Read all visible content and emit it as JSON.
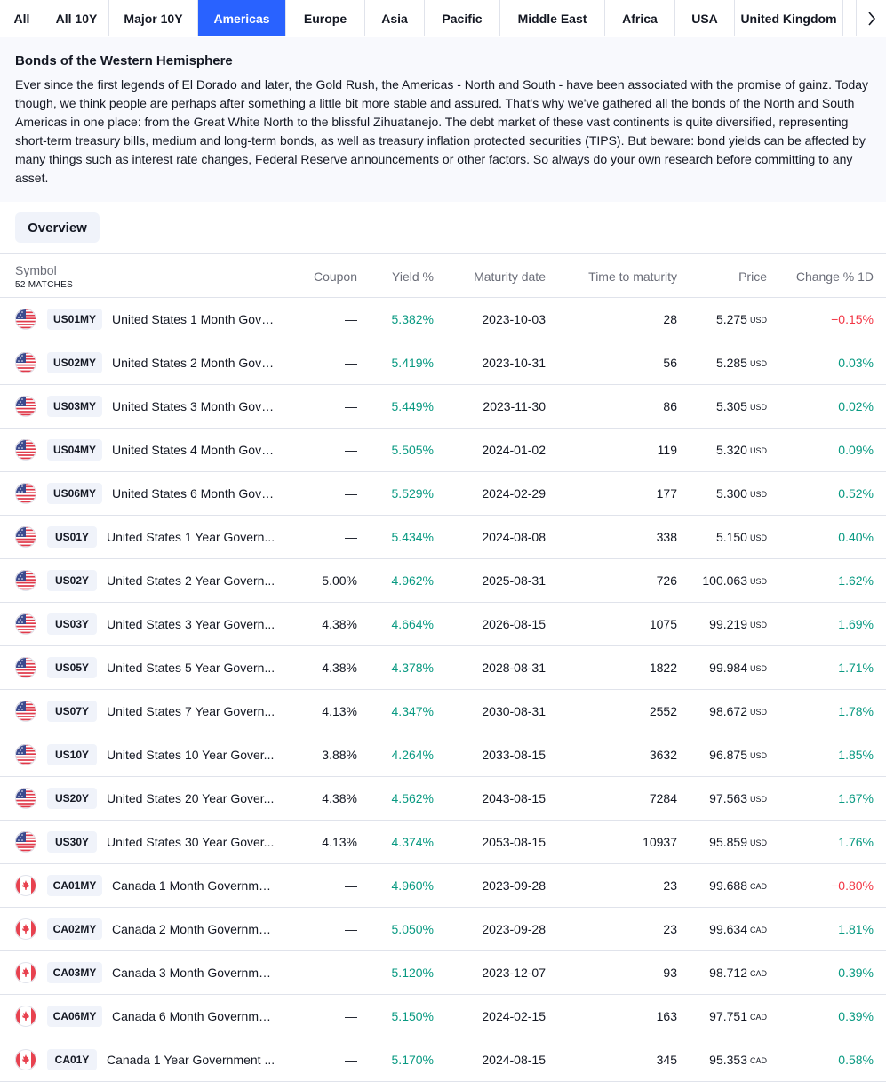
{
  "tabs": [
    {
      "label": "All",
      "active": false
    },
    {
      "label": "All 10Y",
      "active": false
    },
    {
      "label": "Major 10Y",
      "active": false
    },
    {
      "label": "Americas",
      "active": true
    },
    {
      "label": "Europe",
      "active": false
    },
    {
      "label": "Asia",
      "active": false
    },
    {
      "label": "Pacific",
      "active": false
    },
    {
      "label": "Middle East",
      "active": false
    },
    {
      "label": "Africa",
      "active": false
    },
    {
      "label": "USA",
      "active": false
    },
    {
      "label": "United Kingdom",
      "active": false
    }
  ],
  "tab_scroll_icon": "chevron-right-icon",
  "description": {
    "title": "Bonds of the Western Hemisphere",
    "text": "Ever since the first legends of El Dorado and later, the Gold Rush, the Americas - North and South - have been associated with the promise of gainz. Today though, we think people are perhaps after something a little bit more stable and assured. That's why we've gathered all the bonds of the North and South Americas in one place: from the Great White North to the blissful Zihuatanejo. The debt market of these vast continents is quite diversified, representing short-term treasury bills, medium and long-term bonds, as well as treasury inflation protected securities (TIPS). But beware: bond yields can be affected by many things such as interest rate changes, Federal Reserve announcements or other factors. So always do your own research before committing to any asset."
  },
  "overview_label": "Overview",
  "table": {
    "headers": {
      "symbol": "Symbol",
      "matches": "52 MATCHES",
      "coupon": "Coupon",
      "yield": "Yield %",
      "maturity": "Maturity date",
      "ttm": "Time to maturity",
      "price": "Price",
      "change": "Change % 1D"
    },
    "colors": {
      "positive": "#089981",
      "negative": "#f23645",
      "accent": "#2962ff"
    },
    "rows": [
      {
        "flag": "us-flag-icon",
        "ticker": "US01MY",
        "name": "United States 1 Month Gove...",
        "coupon": "—",
        "yield": "5.382%",
        "maturity": "2023-10-03",
        "ttm": "28",
        "price": "5.275",
        "currency": "USD",
        "change": "−0.15%",
        "change_dir": "neg"
      },
      {
        "flag": "us-flag-icon",
        "ticker": "US02MY",
        "name": "United States 2 Month Gove...",
        "coupon": "—",
        "yield": "5.419%",
        "maturity": "2023-10-31",
        "ttm": "56",
        "price": "5.285",
        "currency": "USD",
        "change": "0.03%",
        "change_dir": "pos"
      },
      {
        "flag": "us-flag-icon",
        "ticker": "US03MY",
        "name": "United States 3 Month Gove...",
        "coupon": "—",
        "yield": "5.449%",
        "maturity": "2023-11-30",
        "ttm": "86",
        "price": "5.305",
        "currency": "USD",
        "change": "0.02%",
        "change_dir": "pos"
      },
      {
        "flag": "us-flag-icon",
        "ticker": "US04MY",
        "name": "United States 4 Month Gove...",
        "coupon": "—",
        "yield": "5.505%",
        "maturity": "2024-01-02",
        "ttm": "119",
        "price": "5.320",
        "currency": "USD",
        "change": "0.09%",
        "change_dir": "pos"
      },
      {
        "flag": "us-flag-icon",
        "ticker": "US06MY",
        "name": "United States 6 Month Gove...",
        "coupon": "—",
        "yield": "5.529%",
        "maturity": "2024-02-29",
        "ttm": "177",
        "price": "5.300",
        "currency": "USD",
        "change": "0.52%",
        "change_dir": "pos"
      },
      {
        "flag": "us-flag-icon",
        "ticker": "US01Y",
        "name": "United States 1 Year Govern...",
        "coupon": "—",
        "yield": "5.434%",
        "maturity": "2024-08-08",
        "ttm": "338",
        "price": "5.150",
        "currency": "USD",
        "change": "0.40%",
        "change_dir": "pos"
      },
      {
        "flag": "us-flag-icon",
        "ticker": "US02Y",
        "name": "United States 2 Year Govern...",
        "coupon": "5.00%",
        "yield": "4.962%",
        "maturity": "2025-08-31",
        "ttm": "726",
        "price": "100.063",
        "currency": "USD",
        "change": "1.62%",
        "change_dir": "pos"
      },
      {
        "flag": "us-flag-icon",
        "ticker": "US03Y",
        "name": "United States 3 Year Govern...",
        "coupon": "4.38%",
        "yield": "4.664%",
        "maturity": "2026-08-15",
        "ttm": "1075",
        "price": "99.219",
        "currency": "USD",
        "change": "1.69%",
        "change_dir": "pos"
      },
      {
        "flag": "us-flag-icon",
        "ticker": "US05Y",
        "name": "United States 5 Year Govern...",
        "coupon": "4.38%",
        "yield": "4.378%",
        "maturity": "2028-08-31",
        "ttm": "1822",
        "price": "99.984",
        "currency": "USD",
        "change": "1.71%",
        "change_dir": "pos"
      },
      {
        "flag": "us-flag-icon",
        "ticker": "US07Y",
        "name": "United States 7 Year Govern...",
        "coupon": "4.13%",
        "yield": "4.347%",
        "maturity": "2030-08-31",
        "ttm": "2552",
        "price": "98.672",
        "currency": "USD",
        "change": "1.78%",
        "change_dir": "pos"
      },
      {
        "flag": "us-flag-icon",
        "ticker": "US10Y",
        "name": "United States 10 Year Gover...",
        "coupon": "3.88%",
        "yield": "4.264%",
        "maturity": "2033-08-15",
        "ttm": "3632",
        "price": "96.875",
        "currency": "USD",
        "change": "1.85%",
        "change_dir": "pos"
      },
      {
        "flag": "us-flag-icon",
        "ticker": "US20Y",
        "name": "United States 20 Year Gover...",
        "coupon": "4.38%",
        "yield": "4.562%",
        "maturity": "2043-08-15",
        "ttm": "7284",
        "price": "97.563",
        "currency": "USD",
        "change": "1.67%",
        "change_dir": "pos"
      },
      {
        "flag": "us-flag-icon",
        "ticker": "US30Y",
        "name": "United States 30 Year Gover...",
        "coupon": "4.13%",
        "yield": "4.374%",
        "maturity": "2053-08-15",
        "ttm": "10937",
        "price": "95.859",
        "currency": "USD",
        "change": "1.76%",
        "change_dir": "pos"
      },
      {
        "flag": "ca-flag-icon",
        "ticker": "CA01MY",
        "name": "Canada 1 Month Governmen...",
        "coupon": "—",
        "yield": "4.960%",
        "maturity": "2023-09-28",
        "ttm": "23",
        "price": "99.688",
        "currency": "CAD",
        "change": "−0.80%",
        "change_dir": "neg"
      },
      {
        "flag": "ca-flag-icon",
        "ticker": "CA02MY",
        "name": "Canada 2 Month Governmen...",
        "coupon": "—",
        "yield": "5.050%",
        "maturity": "2023-09-28",
        "ttm": "23",
        "price": "99.634",
        "currency": "CAD",
        "change": "1.81%",
        "change_dir": "pos"
      },
      {
        "flag": "ca-flag-icon",
        "ticker": "CA03MY",
        "name": "Canada 3 Month Governmen...",
        "coupon": "—",
        "yield": "5.120%",
        "maturity": "2023-12-07",
        "ttm": "93",
        "price": "98.712",
        "currency": "CAD",
        "change": "0.39%",
        "change_dir": "pos"
      },
      {
        "flag": "ca-flag-icon",
        "ticker": "CA06MY",
        "name": "Canada 6 Month Governmen...",
        "coupon": "—",
        "yield": "5.150%",
        "maturity": "2024-02-15",
        "ttm": "163",
        "price": "97.751",
        "currency": "CAD",
        "change": "0.39%",
        "change_dir": "pos"
      },
      {
        "flag": "ca-flag-icon",
        "ticker": "CA01Y",
        "name": "Canada 1 Year Government ...",
        "coupon": "—",
        "yield": "5.170%",
        "maturity": "2024-08-15",
        "ttm": "345",
        "price": "95.353",
        "currency": "CAD",
        "change": "0.58%",
        "change_dir": "pos"
      }
    ]
  }
}
